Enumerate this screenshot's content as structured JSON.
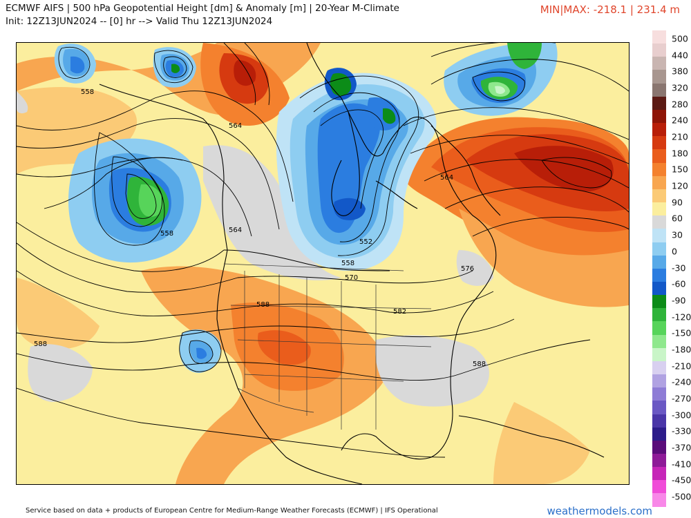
{
  "header": {
    "title_line1": "ECMWF AIFS | 500 hPa Geopotential Height [dm] & Anomaly [m] | 20-Year M-Climate",
    "title_line2": "Init: 12Z13JUN2024 -- [0] hr --> Valid Thu 12Z13JUN2024",
    "minmax": "MIN|MAX: -218.1 | 231.4 m"
  },
  "contour_labels": [
    "558",
    "564",
    "558",
    "564",
    "552",
    "558",
    "570",
    "588",
    "582",
    "576",
    "564",
    "588",
    "588"
  ],
  "colorbar": {
    "ticks": [
      "500",
      "440",
      "380",
      "320",
      "280",
      "240",
      "210",
      "180",
      "150",
      "120",
      "90",
      "60",
      "30",
      "0",
      "-30",
      "-60",
      "-90",
      "-120",
      "-150",
      "-180",
      "-210",
      "-240",
      "-270",
      "-300",
      "-330",
      "-370",
      "-410",
      "-450",
      "-500"
    ],
    "colors": [
      "#f7dede",
      "#e8cece",
      "#c9b5b1",
      "#a8968f",
      "#8a7670",
      "#5c1a14",
      "#8e1406",
      "#b81e08",
      "#d63a10",
      "#ea5d1c",
      "#f4812e",
      "#f8a650",
      "#fbca76",
      "#fbee9e",
      "#d9d9d9",
      "#bfe3f6",
      "#8ecdf1",
      "#57a9e8",
      "#2b7de0",
      "#1258c8",
      "#0c8c18",
      "#2fb43a",
      "#57d45a",
      "#8fe88d",
      "#c9f5c8",
      "#d8d0f0",
      "#b0a2e2",
      "#8e7cd6",
      "#6a58c4",
      "#4a36a8",
      "#2c1c8a",
      "#5a0c7a",
      "#8e1a98",
      "#c626b8",
      "#f04cd8",
      "#f888e8"
    ]
  },
  "footer": {
    "credit": "Service based on data + products of European Centre for Medium-Range Weather Forecasts (ECMWF) | IFS Operational",
    "brand": "weathermodels.com"
  }
}
